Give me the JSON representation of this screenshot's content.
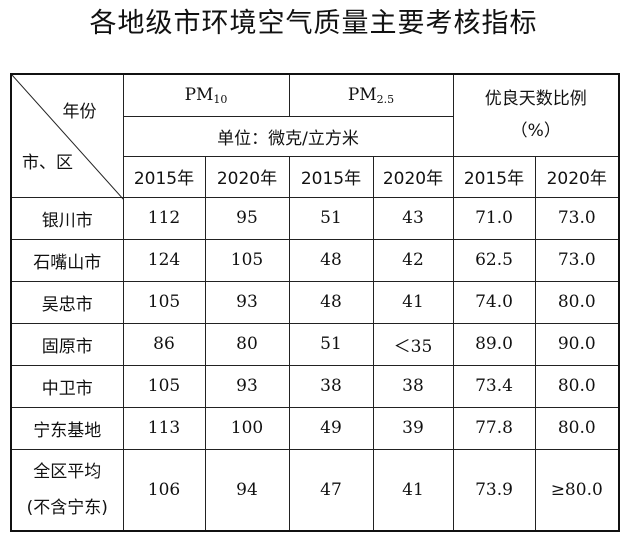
{
  "title": "各地级市环境空气质量主要考核指标",
  "header": {
    "corner_year": "年份",
    "corner_city": "市、区",
    "pm10_main": "PM",
    "pm10_sub": "10",
    "pm25_main": "PM",
    "pm25_sub": "2.5",
    "unit": "单位：微克/立方米",
    "ratio_line1": "优良天数比例",
    "ratio_line2": "（%）",
    "years": [
      "2015年",
      "2020年",
      "2015年",
      "2020年",
      "2015年",
      "2020年"
    ]
  },
  "rows": [
    {
      "city": "银川市",
      "values": [
        "112",
        "95",
        "51",
        "43",
        "71.0",
        "73.0"
      ]
    },
    {
      "city": "石嘴山市",
      "values": [
        "124",
        "105",
        "48",
        "42",
        "62.5",
        "73.0"
      ]
    },
    {
      "city": "吴忠市",
      "values": [
        "105",
        "93",
        "48",
        "41",
        "74.0",
        "80.0"
      ]
    },
    {
      "city": "固原市",
      "values": [
        "86",
        "80",
        "51",
        "＜35",
        "89.0",
        "90.0"
      ]
    },
    {
      "city": "中卫市",
      "values": [
        "105",
        "93",
        "38",
        "38",
        "73.4",
        "80.0"
      ]
    },
    {
      "city": "宁东基地",
      "values": [
        "113",
        "100",
        "49",
        "39",
        "77.8",
        "80.0"
      ]
    }
  ],
  "average": {
    "line1": "全区平均",
    "line2": "(不含宁东)",
    "values": [
      "106",
      "94",
      "47",
      "41",
      "73.9",
      "≥80.0"
    ]
  }
}
